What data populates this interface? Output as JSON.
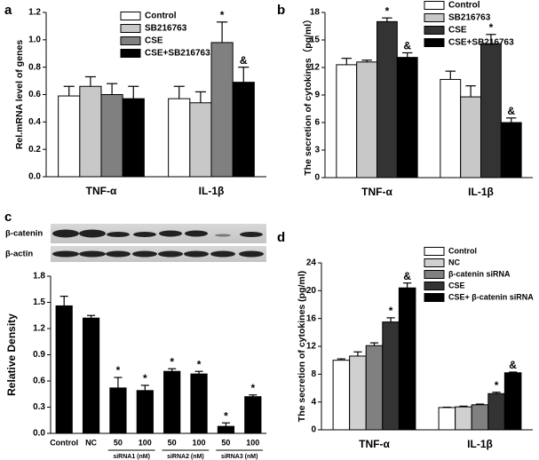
{
  "chart_data": [
    {
      "type": "grouped_bar",
      "panel_label": "a",
      "ylabel": "Rel.mRNA level of genes",
      "categories": [
        "TNF-α",
        "IL-1β"
      ],
      "series": [
        {
          "name": "Control",
          "color": "#ffffff",
          "values": [
            0.59,
            0.57
          ],
          "errors": [
            0.07,
            0.09
          ],
          "markers": [
            null,
            null
          ]
        },
        {
          "name": "SB216763",
          "color": "#c8c8c8",
          "values": [
            0.66,
            0.54
          ],
          "errors": [
            0.07,
            0.08
          ],
          "markers": [
            null,
            null
          ]
        },
        {
          "name": "CSE",
          "color": "#808080",
          "values": [
            0.6,
            0.98
          ],
          "errors": [
            0.08,
            0.15
          ],
          "markers": [
            null,
            "*"
          ]
        },
        {
          "name": "CSE+SB216763",
          "color": "#000000",
          "values": [
            0.57,
            0.69
          ],
          "errors": [
            0.09,
            0.11
          ],
          "markers": [
            null,
            "&"
          ]
        }
      ],
      "ylim": [
        0,
        1.2
      ],
      "yticks": [
        {
          "value": 0,
          "label": "0.0"
        },
        {
          "value": 0.2,
          "label": "0.2"
        },
        {
          "value": 0.4,
          "label": "0.4"
        },
        {
          "value": 0.6,
          "label": "0.6"
        },
        {
          "value": 0.8,
          "label": "0.8"
        },
        {
          "value": 1.0,
          "label": "1.0"
        },
        {
          "value": 1.2,
          "label": "1.2"
        }
      ],
      "legend": "upper center"
    },
    {
      "type": "grouped_bar",
      "panel_label": "b",
      "ylabel": "The secretion of cytokines（pg/ml）",
      "categories": [
        "TNF-α",
        "IL-1β"
      ],
      "series": [
        {
          "name": "Control",
          "color": "#ffffff",
          "values": [
            12.3,
            10.7
          ],
          "errors": [
            0.7,
            0.9
          ],
          "markers": [
            null,
            null
          ]
        },
        {
          "name": "SB216763",
          "color": "#c8c8c8",
          "values": [
            12.6,
            8.8
          ],
          "errors": [
            0.2,
            1.2
          ],
          "markers": [
            null,
            null
          ]
        },
        {
          "name": "CSE",
          "color": "#333333",
          "values": [
            17.0,
            14.6
          ],
          "errors": [
            0.4,
            1.0
          ],
          "markers": [
            "*",
            "*"
          ]
        },
        {
          "name": "CSE+SB216763",
          "color": "#000000",
          "values": [
            13.1,
            6.0
          ],
          "errors": [
            0.5,
            0.5
          ],
          "markers": [
            "&",
            "&"
          ]
        }
      ],
      "ylim": [
        0,
        18
      ],
      "yticks": [
        0,
        3,
        6,
        9,
        12,
        15,
        18
      ],
      "legend": "upper right"
    },
    {
      "type": "bar",
      "panel_label": "c",
      "ylabel": "Relative Density",
      "blot_rows": [
        "β-catenin",
        "β-actin"
      ],
      "categories": [
        "Control",
        "NC",
        "50",
        "100",
        "50",
        "100",
        "50",
        "100"
      ],
      "group_labels": [
        "siRNA1 (nM)",
        "siRNA2 (nM)",
        "siRNA3 (nM)"
      ],
      "color": "#000000",
      "values": [
        1.46,
        1.32,
        0.52,
        0.49,
        0.71,
        0.68,
        0.08,
        0.42
      ],
      "errors": [
        0.11,
        0.03,
        0.12,
        0.06,
        0.03,
        0.03,
        0.04,
        0.02
      ],
      "markers": [
        null,
        null,
        "*",
        "*",
        "*",
        "*",
        "*",
        "*"
      ],
      "ylim": [
        0,
        1.8
      ],
      "yticks": [
        {
          "value": 0,
          "label": "0.0"
        },
        {
          "value": 0.3,
          "label": "0.3"
        },
        {
          "value": 0.6,
          "label": "0.6"
        },
        {
          "value": 0.9,
          "label": "0.9"
        },
        {
          "value": 1.2,
          "label": "1.2"
        },
        {
          "value": 1.5,
          "label": "1.5"
        },
        {
          "value": 1.8,
          "label": "1.8"
        }
      ]
    },
    {
      "type": "grouped_bar",
      "panel_label": "d",
      "ylabel": "The secretion of cytokines (pg/ml)",
      "categories": [
        "TNF-α",
        "IL-1β"
      ],
      "series": [
        {
          "name": "Control",
          "color": "#ffffff",
          "values": [
            10.0,
            3.2
          ],
          "errors": [
            0.2,
            0.05
          ],
          "markers": [
            null,
            null
          ]
        },
        {
          "name": "NC",
          "color": "#d0d0d0",
          "values": [
            10.6,
            3.3
          ],
          "errors": [
            0.6,
            0.1
          ],
          "markers": [
            null,
            null
          ]
        },
        {
          "name": "β-catenin siRNA",
          "color": "#808080",
          "values": [
            12.1,
            3.6
          ],
          "errors": [
            0.4,
            0.1
          ],
          "markers": [
            null,
            null
          ]
        },
        {
          "name": "CSE",
          "color": "#333333",
          "values": [
            15.5,
            5.2
          ],
          "errors": [
            0.6,
            0.2
          ],
          "markers": [
            "*",
            "*"
          ]
        },
        {
          "name": "CSE+ β-catenin siRNA",
          "color": "#000000",
          "values": [
            20.4,
            8.2
          ],
          "errors": [
            0.7,
            0.1
          ],
          "markers": [
            "&",
            "&"
          ]
        }
      ],
      "ylim": [
        0,
        24
      ],
      "yticks": [
        0,
        4,
        8,
        12,
        16,
        20,
        24
      ],
      "legend": "upper right"
    }
  ]
}
